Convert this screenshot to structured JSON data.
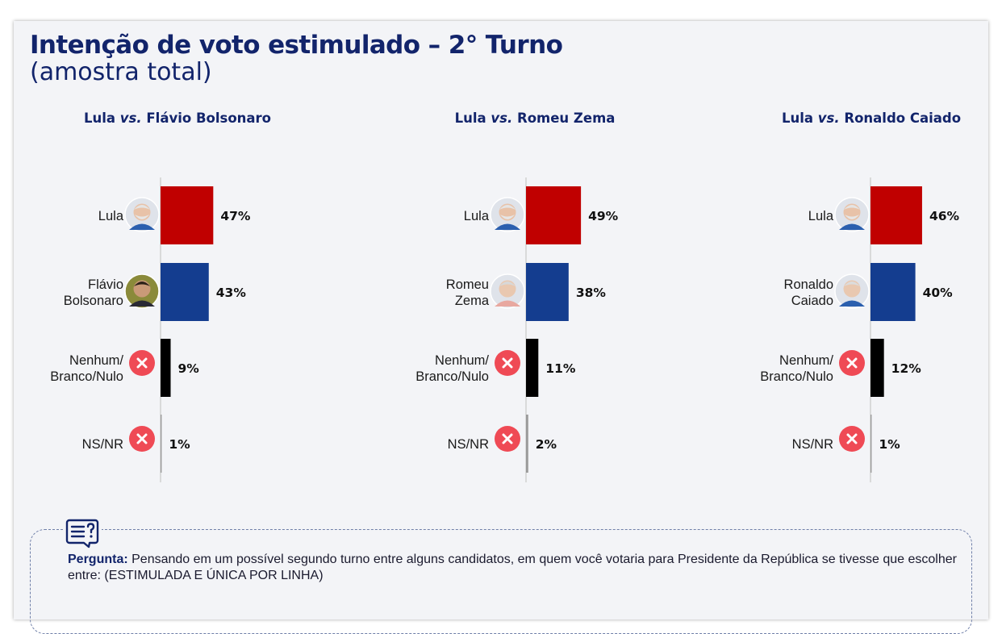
{
  "title": "Intenção de voto estimulado – 2° Turno",
  "subtitle": "(amostra total)",
  "colors": {
    "lula": "#c00000",
    "opponent": "#143d8f",
    "nenhum": "#000000",
    "nsnr": "#9a9a9a",
    "x_badge": "#ef4a55",
    "title": "#12246b"
  },
  "chart_data": [
    {
      "type": "bar",
      "orientation": "horizontal",
      "title_parts": [
        "Lula",
        "vs.",
        "Flávio Bolsonaro"
      ],
      "categories": [
        "Lula",
        "Flávio Bolsonaro",
        "Nenhum/ Branco/Nulo",
        "NS/NR"
      ],
      "category_lines": [
        [
          "Lula"
        ],
        [
          "Flávio",
          "Bolsonaro"
        ],
        [
          "Nenhum/",
          "Branco/Nulo"
        ],
        [
          "NS/NR"
        ]
      ],
      "icons": [
        "lula-photo",
        "flavio-bolsonaro-photo",
        "x-circle-icon",
        "x-circle-icon"
      ],
      "values": [
        47,
        43,
        9,
        1
      ],
      "labels": [
        "47%",
        "43%",
        "9%",
        "1%"
      ],
      "series_colors": [
        "#c00000",
        "#143d8f",
        "#000000",
        "#9a9a9a"
      ]
    },
    {
      "type": "bar",
      "orientation": "horizontal",
      "title_parts": [
        "Lula",
        "vs.",
        "Romeu Zema"
      ],
      "categories": [
        "Lula",
        "Romeu Zema",
        "Nenhum/ Branco/Nulo",
        "NS/NR"
      ],
      "category_lines": [
        [
          "Lula"
        ],
        [
          "Romeu",
          "Zema"
        ],
        [
          "Nenhum/",
          "Branco/Nulo"
        ],
        [
          "NS/NR"
        ]
      ],
      "icons": [
        "lula-photo",
        "romeu-zema-photo",
        "x-circle-icon",
        "x-circle-icon"
      ],
      "values": [
        49,
        38,
        11,
        2
      ],
      "labels": [
        "49%",
        "38%",
        "11%",
        "2%"
      ],
      "series_colors": [
        "#c00000",
        "#143d8f",
        "#000000",
        "#9a9a9a"
      ]
    },
    {
      "type": "bar",
      "orientation": "horizontal",
      "title_parts": [
        "Lula",
        "vs.",
        "Ronaldo Caiado"
      ],
      "categories": [
        "Lula",
        "Ronaldo Caiado",
        "Nenhum/ Branco/Nulo",
        "NS/NR"
      ],
      "category_lines": [
        [
          "Lula"
        ],
        [
          "Ronaldo",
          "Caiado"
        ],
        [
          "Nenhum/",
          "Branco/Nulo"
        ],
        [
          "NS/NR"
        ]
      ],
      "icons": [
        "lula-photo",
        "ronaldo-caiado-photo",
        "x-circle-icon",
        "x-circle-icon"
      ],
      "values": [
        46,
        40,
        12,
        1
      ],
      "labels": [
        "46%",
        "40%",
        "12%",
        "1%"
      ],
      "series_colors": [
        "#c00000",
        "#143d8f",
        "#000000",
        "#9a9a9a"
      ]
    }
  ],
  "question": {
    "label": "Pergunta:",
    "text": "Pensando em um possível segundo turno entre alguns candidatos, em quem você votaria para Presidente da República se tivesse que escolher entre: (ESTIMULADA E ÚNICA POR LINHA)",
    "icon": "question-chat-icon"
  }
}
